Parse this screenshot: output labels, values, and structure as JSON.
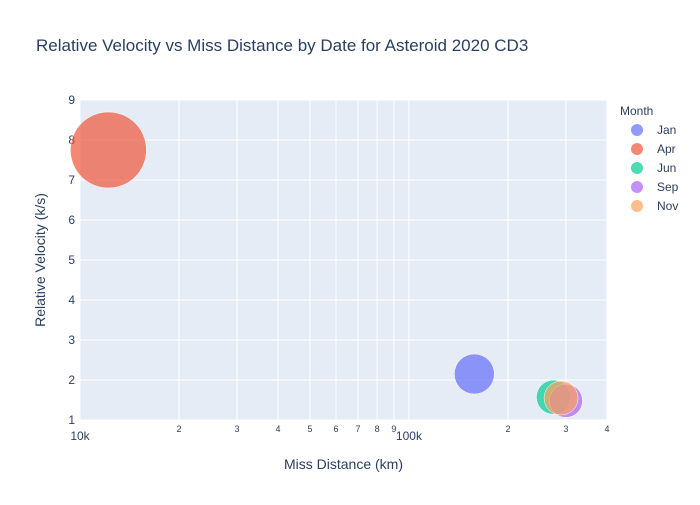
{
  "chart_data": {
    "type": "scatter",
    "title": "Relative Velocity vs Miss Distance by Date for Asteroid 2020 CD3",
    "xlabel": "Miss Distance (km)",
    "ylabel": "Relative Velocity (k/s)",
    "x_scale": "log",
    "xlim": [
      10000,
      400000
    ],
    "ylim": [
      1,
      9
    ],
    "grid": true,
    "legend_position": "right",
    "legend_title": "Month",
    "colors": {
      "Jan": "#636efa",
      "Apr": "#EF553B",
      "Jun": "#00cc96",
      "Sep": "#ab63fa",
      "Nov": "#FFA15A"
    },
    "x_major_ticks": [
      {
        "value": 10000,
        "label": "10k"
      },
      {
        "value": 100000,
        "label": "100k"
      }
    ],
    "x_minor_ticks": [
      {
        "value": 20000,
        "label": "2"
      },
      {
        "value": 30000,
        "label": "3"
      },
      {
        "value": 40000,
        "label": "4"
      },
      {
        "value": 50000,
        "label": "5"
      },
      {
        "value": 60000,
        "label": "6"
      },
      {
        "value": 70000,
        "label": "7"
      },
      {
        "value": 80000,
        "label": "8"
      },
      {
        "value": 90000,
        "label": "9"
      },
      {
        "value": 200000,
        "label": "2"
      },
      {
        "value": 300000,
        "label": "3"
      },
      {
        "value": 400000,
        "label": "4"
      }
    ],
    "y_ticks": [
      1,
      2,
      3,
      4,
      5,
      6,
      7,
      8,
      9
    ],
    "series": [
      {
        "name": "Jan",
        "points": [
          {
            "x": 158000,
            "y": 2.15,
            "size": 2.15
          }
        ]
      },
      {
        "name": "Apr",
        "points": [
          {
            "x": 12200,
            "y": 7.75,
            "size": 7.75
          }
        ]
      },
      {
        "name": "Jun",
        "points": [
          {
            "x": 275000,
            "y": 1.57,
            "size": 1.57
          }
        ]
      },
      {
        "name": "Sep",
        "points": [
          {
            "x": 300000,
            "y": 1.48,
            "size": 1.48
          }
        ]
      },
      {
        "name": "Nov",
        "points": [
          {
            "x": 290000,
            "y": 1.55,
            "size": 1.55
          }
        ]
      }
    ]
  }
}
